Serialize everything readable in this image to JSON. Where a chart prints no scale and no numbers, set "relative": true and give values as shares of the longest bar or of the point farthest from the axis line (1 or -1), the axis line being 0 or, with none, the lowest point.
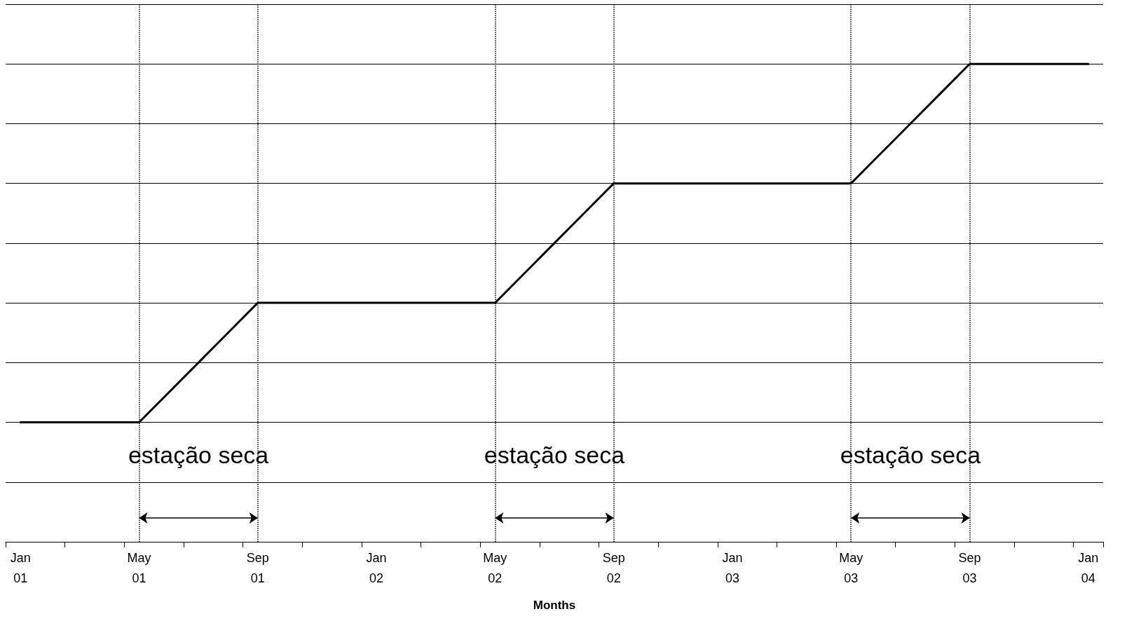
{
  "chart_data": {
    "type": "line",
    "relative": true,
    "xlabel": "Months",
    "categories": [
      "Jan\n01",
      null,
      null,
      null,
      "May\n01",
      null,
      null,
      null,
      "Sep\n01",
      null,
      null,
      null,
      "Jan\n02",
      null,
      null,
      null,
      "May\n02",
      null,
      null,
      null,
      "Sep\n02",
      null,
      null,
      null,
      "Jan\n03",
      null,
      null,
      null,
      "May\n03",
      null,
      null,
      null,
      "Sep\n03",
      null,
      null,
      null,
      "Jan\n04"
    ],
    "series": [
      {
        "color": "#000000",
        "values": [
          0.25,
          0.25,
          0.25,
          0.25,
          0.25,
          0.3125,
          0.375,
          0.4375,
          0.5,
          0.5,
          0.5,
          0.5,
          0.5,
          0.5,
          0.5,
          0.5,
          0.5,
          0.5625,
          0.625,
          0.6875,
          0.75,
          0.75,
          0.75,
          0.75,
          0.75,
          0.75,
          0.75,
          0.75,
          0.75,
          0.8125,
          0.875,
          0.9375,
          1,
          1,
          1,
          1,
          1
        ]
      }
    ],
    "grid": "y",
    "marker": "none",
    "line_style": "solid",
    "ref_lines": [
      {
        "axis": "x",
        "value": "May\n01",
        "line_style": "dotted"
      },
      {
        "axis": "x",
        "value": "Sep\n01",
        "line_style": "dotted"
      },
      {
        "axis": "x",
        "value": "May\n02",
        "line_style": "dotted"
      },
      {
        "axis": "x",
        "value": "Sep\n02",
        "line_style": "dotted"
      },
      {
        "axis": "x",
        "value": "May\n03",
        "line_style": "dotted"
      },
      {
        "axis": "x",
        "value": "Sep\n03",
        "line_style": "dotted"
      }
    ],
    "annotations": [
      "estação seca",
      "estação seca",
      "estação seca"
    ]
  }
}
